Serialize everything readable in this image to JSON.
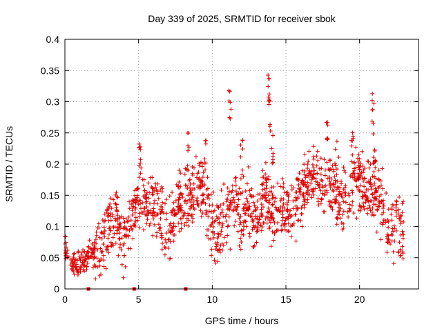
{
  "chart_data": {
    "type": "scatter",
    "title": "Day 339 of 2025, SRMTID for receiver sbok",
    "xlabel": "GPS time / hours",
    "ylabel": "SRMTID / TECUs",
    "xlim": [
      0,
      24
    ],
    "ylim": [
      0,
      0.4
    ],
    "xticks": [
      "0",
      "5",
      "10",
      "15",
      "20"
    ],
    "yticks": [
      "0",
      "0.05",
      "0.1",
      "0.15",
      "0.2",
      "0.25",
      "0.3",
      "0.35",
      "0.4"
    ],
    "grid": true,
    "series": [
      {
        "name": "SRMTID",
        "color": "#e00000",
        "marker": "plus",
        "trend": [
          [
            0.0,
            0.07
          ],
          [
            0.3,
            0.045
          ],
          [
            0.7,
            0.04
          ],
          [
            1.2,
            0.045
          ],
          [
            1.6,
            0.055
          ],
          [
            2.0,
            0.06
          ],
          [
            2.5,
            0.08
          ],
          [
            3.0,
            0.11
          ],
          [
            3.5,
            0.12
          ],
          [
            4.0,
            0.08
          ],
          [
            4.5,
            0.1
          ],
          [
            5.0,
            0.16
          ],
          [
            5.5,
            0.13
          ],
          [
            6.0,
            0.14
          ],
          [
            6.5,
            0.12
          ],
          [
            7.0,
            0.08
          ],
          [
            7.5,
            0.13
          ],
          [
            8.0,
            0.15
          ],
          [
            8.5,
            0.14
          ],
          [
            9.0,
            0.16
          ],
          [
            9.5,
            0.17
          ],
          [
            10.0,
            0.1
          ],
          [
            10.5,
            0.09
          ],
          [
            11.0,
            0.12
          ],
          [
            11.5,
            0.14
          ],
          [
            12.0,
            0.11
          ],
          [
            12.5,
            0.13
          ],
          [
            13.0,
            0.1
          ],
          [
            13.5,
            0.15
          ],
          [
            14.0,
            0.13
          ],
          [
            14.5,
            0.12
          ],
          [
            15.0,
            0.12
          ],
          [
            15.5,
            0.13
          ],
          [
            16.0,
            0.15
          ],
          [
            16.5,
            0.17
          ],
          [
            17.0,
            0.18
          ],
          [
            17.5,
            0.16
          ],
          [
            18.0,
            0.17
          ],
          [
            18.5,
            0.14
          ],
          [
            19.0,
            0.15
          ],
          [
            19.5,
            0.16
          ],
          [
            20.0,
            0.17
          ],
          [
            20.5,
            0.15
          ],
          [
            21.0,
            0.16
          ],
          [
            21.5,
            0.14
          ],
          [
            22.0,
            0.09
          ],
          [
            22.5,
            0.11
          ],
          [
            23.0,
            0.08
          ]
        ],
        "spikes": [
          [
            5.1,
            0.24
          ],
          [
            8.4,
            0.25
          ],
          [
            9.5,
            0.25
          ],
          [
            11.2,
            0.32
          ],
          [
            12.0,
            0.24
          ],
          [
            13.8,
            0.355
          ],
          [
            13.9,
            0.31
          ],
          [
            14.1,
            0.25
          ],
          [
            17.8,
            0.28
          ],
          [
            18.4,
            0.24
          ],
          [
            19.5,
            0.27
          ],
          [
            20.0,
            0.22
          ],
          [
            20.9,
            0.315
          ],
          [
            21.0,
            0.26
          ]
        ]
      }
    ],
    "baseline_markers_x": [
      1.6,
      4.7,
      8.2
    ]
  }
}
